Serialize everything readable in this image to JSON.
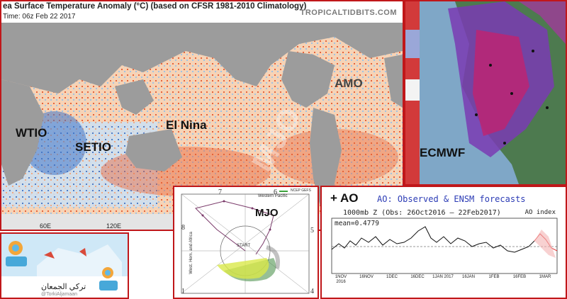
{
  "sst_panel": {
    "title": "ea Surface Temperature Anomaly (°C) (based on CFSR 1981-2010 Climatology)",
    "time": "Time: 06z Feb 22 2017",
    "brand": "TROPICALTIDBITS.COM",
    "labels": {
      "wtio": "WTIO",
      "setio": "SETIO",
      "el_nina": "El Nina",
      "amo": "AMO"
    },
    "lon_labels": [
      "60E",
      "120E"
    ],
    "colors": {
      "warm": "#e8643a",
      "cool": "#3f75c9",
      "land": "#9c9c9c"
    }
  },
  "ecmwf_panel": {
    "label": "ECMWF"
  },
  "mjo_panel": {
    "label": "MJO",
    "legend": "NCEP GEFS",
    "start": "START",
    "phases": [
      "1",
      "4",
      "5",
      "6",
      "7",
      "8"
    ],
    "region_texts": [
      "Western Pacific",
      "West. Hem. and Africa"
    ]
  },
  "ao_panel": {
    "badge": "+ AO",
    "title": "AO: Observed & ENSM forecasts",
    "subtitle": "1000mb Z (Obs: 26Oct2016 – 22Feb2017)",
    "index_label": "AO index",
    "mean": "mean=0.4779",
    "x_ticks": [
      "1NOV 2016",
      "16NOV",
      "1DEC",
      "16DEC",
      "1JAN 2017",
      "16JAN",
      "1FEB",
      "16FEB",
      "1MAR"
    ]
  },
  "logo_panel": {
    "name": "تركي الجمعان",
    "handle": "@TorkiAljamaan",
    "brand_text": "تركي الجمعان"
  },
  "watermark": "MJO"
}
